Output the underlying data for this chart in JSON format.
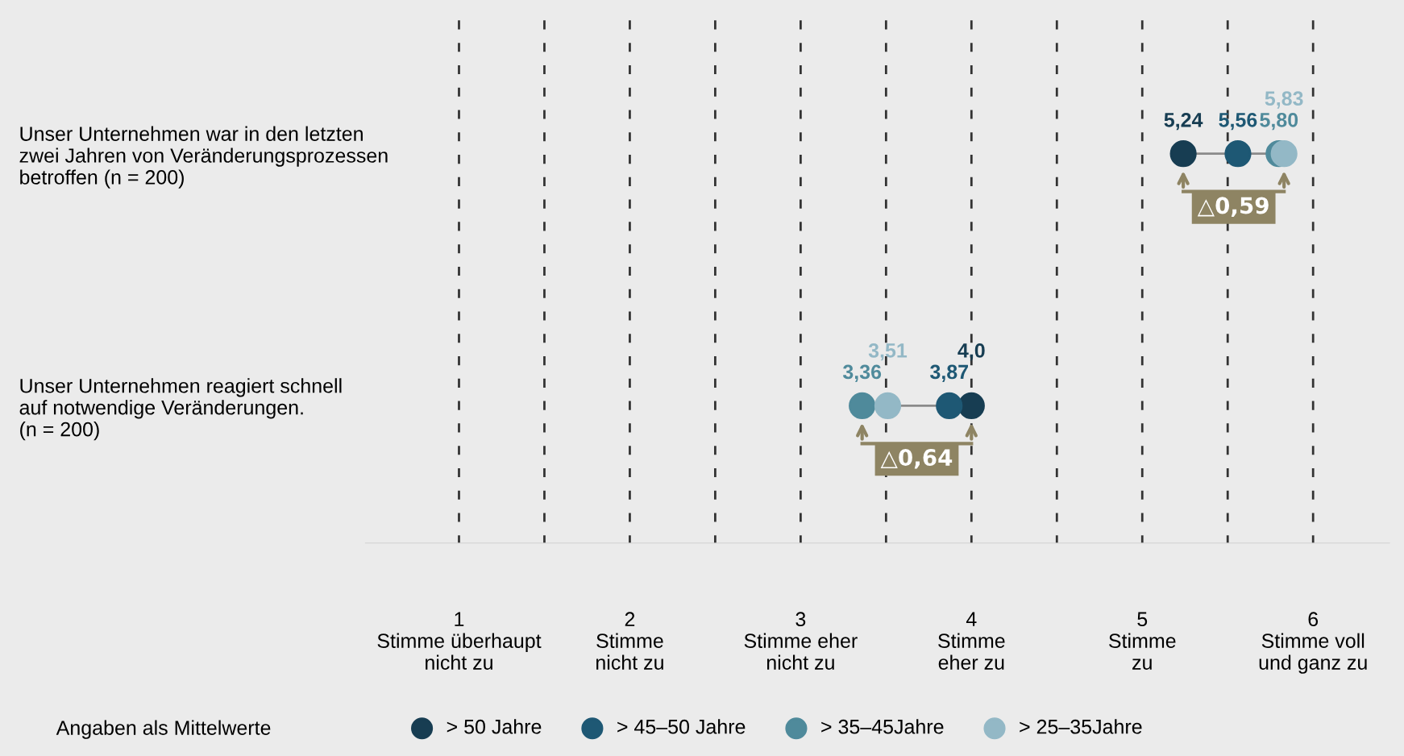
{
  "chart_data": {
    "type": "scatter",
    "orientation": "horizontal",
    "categories": [
      "Unser Unternehmen war in den letzten\nzwei Jahren von Veränderungsprozessen\nbetroffen (n = 200)",
      "Unser Unternehmen reagiert schnell\nauf notwendige Veränderungen.\n(n = 200)"
    ],
    "series": [
      {
        "name": "> 50 Jahre",
        "color": "#173d52",
        "values": [
          5.24,
          4.0
        ],
        "value_labels": [
          "5,24",
          "4,0"
        ]
      },
      {
        "name": "> 45–50 Jahre",
        "color": "#1e5874",
        "values": [
          5.56,
          3.87
        ],
        "value_labels": [
          "5,56",
          "3,87"
        ]
      },
      {
        "name": "> 35–45Jahre",
        "color": "#4f8a9b",
        "values": [
          5.8,
          3.36
        ],
        "value_labels": [
          "5,80",
          "3,36"
        ]
      },
      {
        "name": "> 25–35Jahre",
        "color": "#93b8c6",
        "values": [
          5.83,
          3.51
        ],
        "value_labels": [
          "5,83",
          "3,51"
        ]
      }
    ],
    "xlim": [
      0.45,
      6.45
    ],
    "xticks": [
      {
        "value": 1,
        "label": "1\nStimme überhaupt\nnicht zu"
      },
      {
        "value": 1.5,
        "label": null
      },
      {
        "value": 2,
        "label": "2\nStimme\nnicht zu"
      },
      {
        "value": 2.5,
        "label": null
      },
      {
        "value": 3,
        "label": "3\nStimme eher\nnicht zu"
      },
      {
        "value": 3.5,
        "label": null
      },
      {
        "value": 4,
        "label": "4\nStimme\neher zu"
      },
      {
        "value": 4.5,
        "label": null
      },
      {
        "value": 5,
        "label": "5\nStimme\nzu"
      },
      {
        "value": 5.5,
        "label": null
      },
      {
        "value": 6,
        "label": "6\nStimme voll\nund ganz zu"
      }
    ],
    "grid": "x",
    "line_style": "dashed",
    "marker": "circle",
    "legend": "bottom",
    "annotations": [
      "△0,59",
      "△0,64",
      "Angaben als Mittelwerte"
    ]
  }
}
